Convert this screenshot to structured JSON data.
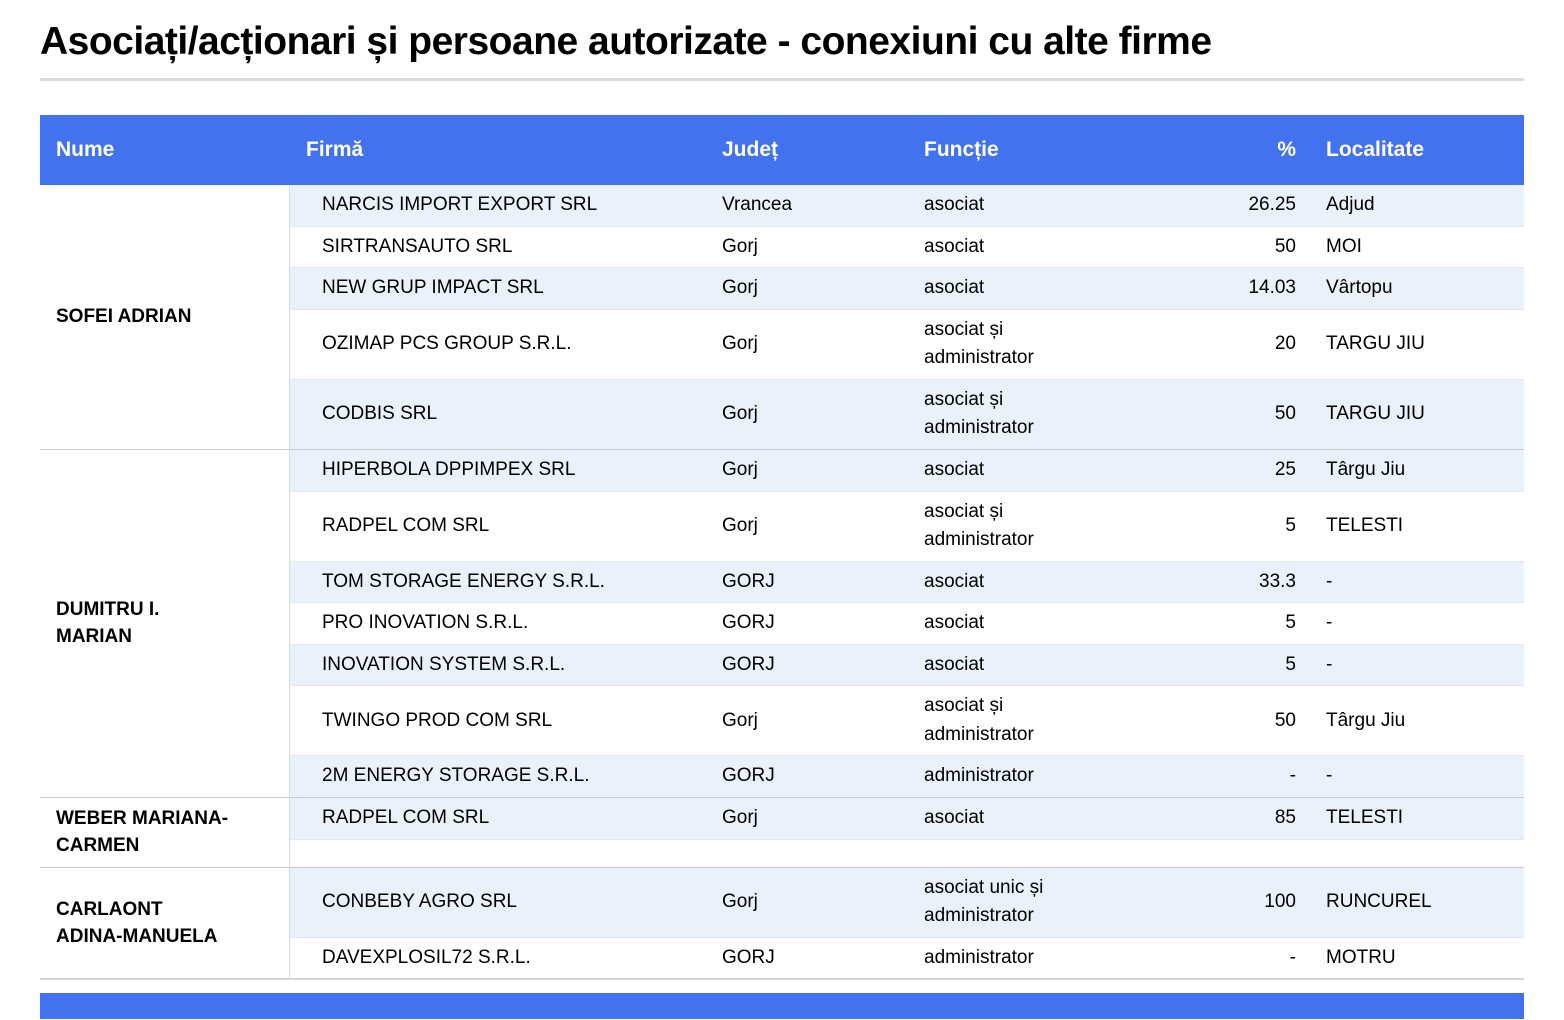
{
  "title": "Asociați/acționari și persoane autorizate - conexiuni cu alte firme",
  "colors": {
    "header_bg": "#4272ee",
    "stripe_bg": "#eaf1fa"
  },
  "table": {
    "headers": {
      "nume": "Nume",
      "firma": "Firmă",
      "judet": "Județ",
      "functie": "Funcție",
      "procent": "%",
      "localitate": "Localitate"
    },
    "groups": [
      {
        "name": "SOFEI ADRIAN",
        "rows": [
          {
            "firma": "NARCIS IMPORT EXPORT SRL",
            "judet": "Vrancea",
            "functie": "asociat",
            "procent": "26.25",
            "localitate": "Adjud"
          },
          {
            "firma": "SIRTRANSAUTO SRL",
            "judet": "Gorj",
            "functie": "asociat",
            "procent": "50",
            "localitate": "MOI"
          },
          {
            "firma": "NEW GRUP IMPACT SRL",
            "judet": "Gorj",
            "functie": "asociat",
            "procent": "14.03",
            "localitate": "Vârtopu"
          },
          {
            "firma": "OZIMAP PCS GROUP S.R.L.",
            "judet": "Gorj",
            "functie": "asociat și administrator",
            "procent": "20",
            "localitate": "TARGU JIU"
          },
          {
            "firma": "CODBIS SRL",
            "judet": "Gorj",
            "functie": "asociat și administrator",
            "procent": "50",
            "localitate": "TARGU JIU"
          }
        ]
      },
      {
        "name": "DUMITRU I. MARIAN",
        "rows": [
          {
            "firma": "HIPERBOLA DPPIMPEX SRL",
            "judet": "Gorj",
            "functie": "asociat",
            "procent": "25",
            "localitate": "Târgu Jiu"
          },
          {
            "firma": "RADPEL COM SRL",
            "judet": "Gorj",
            "functie": "asociat și administrator",
            "procent": "5",
            "localitate": "TELESTI"
          },
          {
            "firma": "TOM STORAGE ENERGY S.R.L.",
            "judet": "GORJ",
            "functie": "asociat",
            "procent": "33.3",
            "localitate": "-"
          },
          {
            "firma": "PRO INOVATION S.R.L.",
            "judet": "GORJ",
            "functie": "asociat",
            "procent": "5",
            "localitate": "-"
          },
          {
            "firma": "INOVATION SYSTEM S.R.L.",
            "judet": "GORJ",
            "functie": "asociat",
            "procent": "5",
            "localitate": "-"
          },
          {
            "firma": "TWINGO PROD COM SRL",
            "judet": "Gorj",
            "functie": "asociat și administrator",
            "procent": "50",
            "localitate": "Târgu Jiu"
          },
          {
            "firma": "2M ENERGY STORAGE S.R.L.",
            "judet": "GORJ",
            "functie": "administrator",
            "procent": "-",
            "localitate": "-"
          }
        ]
      },
      {
        "name": "WEBER MARIANA-CARMEN",
        "rows": [
          {
            "firma": "RADPEL COM SRL",
            "judet": "Gorj",
            "functie": "asociat",
            "procent": "85",
            "localitate": "TELESTI"
          },
          {
            "firma": "",
            "judet": "",
            "functie": "",
            "procent": "",
            "localitate": "",
            "empty": true
          }
        ]
      },
      {
        "name": "CARLAONT ADINA-MANUELA",
        "rows": [
          {
            "firma": "CONBEBY AGRO SRL",
            "judet": "Gorj",
            "functie": "asociat unic și administrator",
            "procent": "100",
            "localitate": "RUNCUREL"
          },
          {
            "firma": "DAVEXPLOSIL72 S.R.L.",
            "judet": "GORJ",
            "functie": "administrator",
            "procent": "-",
            "localitate": "MOTRU"
          }
        ]
      }
    ]
  }
}
